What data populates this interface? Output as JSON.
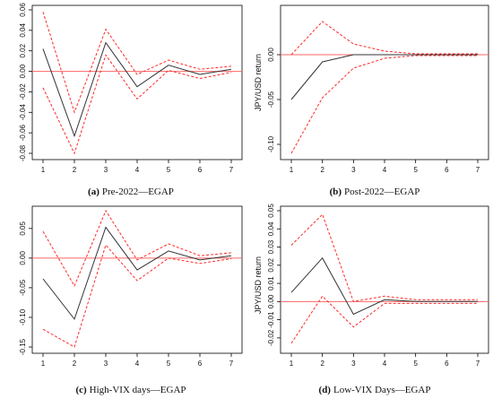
{
  "chart_data": [
    {
      "type": "line",
      "caption_letter": "(a)",
      "caption_text": "Pre-2022—EGAP",
      "xlabel": "",
      "ylabel": "",
      "x": [
        1,
        2,
        3,
        4,
        5,
        6,
        7
      ],
      "ylim": [
        -0.08,
        0.06
      ],
      "yticks": [
        "0.06",
        "0.04",
        "0.02",
        "0.00",
        "-0.02",
        "-0.04",
        "-0.06",
        "-0.08"
      ],
      "ytick_values": [
        0.06,
        0.04,
        0.02,
        0.0,
        -0.02,
        -0.04,
        -0.06,
        -0.08
      ],
      "xticks": [
        "1",
        "2",
        "3",
        "4",
        "5",
        "6",
        "7"
      ],
      "zero_line": 0,
      "series": [
        {
          "role": "response",
          "values": [
            0.022,
            -0.063,
            0.028,
            -0.015,
            0.006,
            -0.003,
            0.002
          ]
        },
        {
          "role": "upper",
          "values": [
            0.058,
            -0.04,
            0.041,
            -0.003,
            0.011,
            0.002,
            0.005
          ]
        },
        {
          "role": "lower",
          "values": [
            -0.016,
            -0.08,
            0.016,
            -0.027,
            0.001,
            -0.007,
            -0.001
          ]
        }
      ]
    },
    {
      "type": "line",
      "caption_letter": "(b)",
      "caption_text": "Post-2022—EGAP",
      "xlabel": "",
      "ylabel": "JPY/USD return",
      "x": [
        1,
        2,
        3,
        4,
        5,
        6,
        7
      ],
      "ylim": [
        -0.11,
        0.05
      ],
      "yticks": [
        "0.00",
        "-0.05",
        "-0.10"
      ],
      "ytick_values": [
        0.0,
        -0.05,
        -0.1
      ],
      "xticks": [
        "1",
        "2",
        "3",
        "4",
        "5",
        "6",
        "7"
      ],
      "zero_line": 0,
      "series": [
        {
          "role": "response",
          "values": [
            -0.05,
            -0.008,
            0.0,
            0.0,
            0.0,
            0.0,
            0.0
          ]
        },
        {
          "role": "upper",
          "values": [
            0.0,
            0.037,
            0.012,
            0.004,
            0.001,
            0.001,
            0.001
          ]
        },
        {
          "role": "lower",
          "values": [
            -0.11,
            -0.048,
            -0.015,
            -0.004,
            -0.001,
            -0.001,
            -0.001
          ]
        }
      ]
    },
    {
      "type": "line",
      "caption_letter": "(c)",
      "caption_text": "High-VIX days—EGAP",
      "xlabel": "",
      "ylabel": "",
      "x": [
        1,
        2,
        3,
        4,
        5,
        6,
        7
      ],
      "ylim": [
        -0.15,
        0.08
      ],
      "yticks": [
        "0.05",
        "0.00",
        "-0.05",
        "-0.10",
        "-0.15"
      ],
      "ytick_values": [
        0.05,
        0.0,
        -0.05,
        -0.1,
        -0.15
      ],
      "xticks": [
        "1",
        "2",
        "3",
        "4",
        "5",
        "6",
        "7"
      ],
      "zero_line": 0,
      "series": [
        {
          "role": "response",
          "values": [
            -0.035,
            -0.103,
            0.052,
            -0.02,
            0.012,
            -0.003,
            0.004
          ]
        },
        {
          "role": "upper",
          "values": [
            0.045,
            -0.047,
            0.08,
            -0.003,
            0.024,
            0.004,
            0.009
          ]
        },
        {
          "role": "lower",
          "values": [
            -0.12,
            -0.15,
            0.022,
            -0.038,
            0.0,
            -0.009,
            -0.001
          ]
        }
      ]
    },
    {
      "type": "line",
      "caption_letter": "(d)",
      "caption_text": "Low-VIX Days—EGAP",
      "xlabel": "",
      "ylabel": "JPY/USD return",
      "x": [
        1,
        2,
        3,
        4,
        5,
        6,
        7
      ],
      "ylim": [
        -0.025,
        0.05
      ],
      "yticks": [
        "0.05",
        "0.04",
        "0.03",
        "0.02",
        "0.01",
        "0.00",
        "-0.01",
        "-0.02"
      ],
      "ytick_values": [
        0.05,
        0.04,
        0.03,
        0.02,
        0.01,
        0.0,
        -0.01,
        -0.02
      ],
      "xticks": [
        "1",
        "2",
        "3",
        "4",
        "5",
        "6",
        "7"
      ],
      "zero_line": 0,
      "series": [
        {
          "role": "response",
          "values": [
            0.005,
            0.024,
            -0.007,
            0.001,
            0.0,
            0.0,
            0.0
          ]
        },
        {
          "role": "upper",
          "values": [
            0.031,
            0.048,
            0.0,
            0.003,
            0.001,
            0.001,
            0.001
          ]
        },
        {
          "role": "lower",
          "values": [
            -0.023,
            0.003,
            -0.014,
            -0.001,
            -0.001,
            -0.001,
            -0.001
          ]
        }
      ]
    }
  ],
  "colors": {
    "response": "#333333",
    "band": "#ff2a2a",
    "zero_line": "#ff6666",
    "axis": "#000000"
  }
}
